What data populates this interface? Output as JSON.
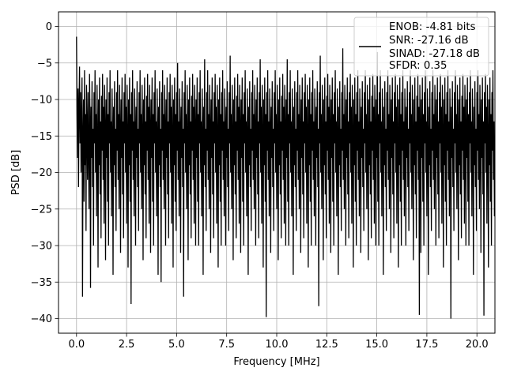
{
  "chart_data": {
    "type": "line",
    "title": "",
    "xlabel": "Frequency [MHz]",
    "ylabel": "PSD [dB]",
    "xlim": [
      -0.9,
      20.9
    ],
    "ylim": [
      -42,
      2
    ],
    "xticks": [
      0.0,
      2.5,
      5.0,
      7.5,
      10.0,
      12.5,
      15.0,
      17.5,
      20.0
    ],
    "xtick_labels": [
      "0.0",
      "2.5",
      "5.0",
      "7.5",
      "10.0",
      "12.5",
      "15.0",
      "17.5",
      "20.0"
    ],
    "yticks": [
      0,
      -5,
      -10,
      -15,
      -20,
      -25,
      -30,
      -35,
      -40
    ],
    "ytick_labels": [
      "0",
      "−5",
      "−10",
      "−15",
      "−20",
      "−25",
      "−30",
      "−35",
      "−40"
    ],
    "grid": true,
    "legend_position": "top-right",
    "legend_lines": [
      "ENOB: -4.81 bits",
      "SNR: -27.16 dB",
      "SINAD: -27.18 dB",
      "SFDR: 0.35"
    ],
    "series_color": "#000000",
    "peaks": [
      {
        "x": 0.0,
        "y": -1.4
      },
      {
        "x": 0.36,
        "y": -37.0
      },
      {
        "x": 0.85,
        "y": -35.8
      },
      {
        "x": 3.12,
        "y": -38.0
      },
      {
        "x": 4.5,
        "y": -35.0
      },
      {
        "x": 5.65,
        "y": -37.0
      },
      {
        "x": 9.1,
        "y": -39.8
      },
      {
        "x": 11.5,
        "y": -38.3
      },
      {
        "x": 16.6,
        "y": -39.5
      },
      {
        "x": 18.2,
        "y": -40.0
      },
      {
        "x": 19.4,
        "y": -39.6
      }
    ],
    "series": [
      {
        "sampling": "every 0.025 MHz from 0.0 to 20.0 MHz (801 points)",
        "x_start": 0.0,
        "x_step": 0.025,
        "values": [
          -1.4,
          -12,
          -18,
          -8.5,
          -22,
          -11,
          -5.5,
          -16,
          -9,
          -20,
          -13,
          -7,
          -37,
          -15,
          -10,
          -24,
          -6,
          -19,
          -12,
          -28,
          -8,
          -14,
          -21,
          -9,
          -17,
          -25,
          -6.5,
          -13,
          -35.8,
          -11,
          -18,
          -7.5,
          -22,
          -14,
          -30,
          -9,
          -16,
          -6,
          -20,
          -12,
          -26,
          -8,
          -15,
          -33,
          -10,
          -19,
          -7,
          -23,
          -13,
          -29,
          -9.5,
          -17,
          -6.5,
          -21,
          -11,
          -27,
          -8,
          -14,
          -32,
          -10,
          -18,
          -7,
          -24,
          -12,
          -30,
          -9,
          -16,
          -6,
          -20,
          -13,
          -26,
          -8.5,
          -15,
          -34,
          -11,
          -19,
          -7.5,
          -22,
          -14,
          -28,
          -9,
          -17,
          -6,
          -21,
          -12,
          -25,
          -8,
          -14,
          -31,
          -10,
          -18,
          -7,
          -23,
          -13,
          -29,
          -9,
          -16,
          -6.5,
          -20,
          -11,
          -27,
          -8,
          -15,
          -33,
          -10,
          -19,
          -7,
          -24,
          -12,
          -38,
          -9,
          -17,
          -6,
          -21,
          -13,
          -26,
          -8.5,
          -14,
          -30,
          -11,
          -18,
          -7.5,
          -22,
          -14,
          -28,
          -9,
          -16,
          -6,
          -20,
          -12,
          -25,
          -8,
          -15,
          -32,
          -10,
          -19,
          -7,
          -23,
          -13,
          -29,
          -9.5,
          -17,
          -6.5,
          -21,
          -11,
          -27,
          -8,
          -14,
          -31,
          -10,
          -18,
          -7,
          -24,
          -12,
          -30,
          -9,
          -16,
          -6,
          -20,
          -13,
          -26,
          -8.5,
          -15,
          -34,
          -11,
          -19,
          -7.5,
          -22,
          -14,
          -35,
          -9,
          -17,
          -6,
          -21,
          -12,
          -25,
          -8,
          -14,
          -30,
          -10,
          -18,
          -7,
          -23,
          -13,
          -29,
          -9,
          -16,
          -6.5,
          -20,
          -11,
          -27,
          -8,
          -15,
          -33,
          -10,
          -19,
          -7,
          -24,
          -12,
          -28,
          -9,
          -17,
          -5,
          -21,
          -13,
          -26,
          -8.5,
          -14,
          -31,
          -11,
          -18,
          -7.5,
          -22,
          -14,
          -37,
          -9,
          -16,
          -6,
          -20,
          -12,
          -25,
          -8,
          -15,
          -32,
          -10,
          -19,
          -7,
          -23,
          -13,
          -29,
          -9.5,
          -17,
          -6.5,
          -21,
          -11,
          -27,
          -8,
          -14,
          -30,
          -10,
          -18,
          -7,
          -24,
          -12,
          -30,
          -9,
          -16,
          -6,
          -20,
          -13,
          -26,
          -8.5,
          -15,
          -34,
          -11,
          -19,
          -4.5,
          -22,
          -14,
          -28,
          -9,
          -17,
          -6,
          -21,
          -12,
          -25,
          -8,
          -14,
          -31,
          -10,
          -18,
          -7,
          -23,
          -13,
          -29,
          -9,
          -16,
          -6.5,
          -20,
          -11,
          -27,
          -8,
          -15,
          -33,
          -10,
          -19,
          -7,
          -24,
          -12,
          -30,
          -9,
          -17,
          -6,
          -21,
          -13,
          -26,
          -8.5,
          -14,
          -30,
          -11,
          -18,
          -7.5,
          -22,
          -14,
          -28,
          -9,
          -16,
          -4,
          -20,
          -12,
          -25,
          -8,
          -15,
          -32,
          -10,
          -19,
          -7,
          -23,
          -13,
          -29,
          -9.5,
          -17,
          -6.5,
          -21,
          -11,
          -27,
          -8,
          -14,
          -31,
          -10,
          -18,
          -7,
          -24,
          -12,
          -30,
          -9,
          -16,
          -6,
          -20,
          -13,
          -26,
          -8.5,
          -15,
          -34,
          -11,
          -19,
          -7.5,
          -22,
          -14,
          -28,
          -9,
          -17,
          -6,
          -21,
          -12,
          -25,
          -8,
          -14,
          -30,
          -10,
          -18,
          -7,
          -23,
          -13,
          -29,
          -9,
          -16,
          -4.5,
          -20,
          -11,
          -27,
          -8,
          -15,
          -33,
          -10,
          -19,
          -7,
          -24,
          -12,
          -39.8,
          -9,
          -17,
          -6,
          -21,
          -13,
          -26,
          -8.5,
          -14,
          -31,
          -11,
          -18,
          -7.5,
          -22,
          -14,
          -28,
          -9,
          -16,
          -6,
          -20,
          -12,
          -25,
          -8,
          -15,
          -32,
          -10,
          -19,
          -7,
          -23,
          -13,
          -29,
          -9.5,
          -17,
          -6.5,
          -21,
          -11,
          -27,
          -8,
          -14,
          -30,
          -10,
          -18,
          -4.5,
          -24,
          -12,
          -30,
          -9,
          -16,
          -6,
          -20,
          -13,
          -26,
          -8.5,
          -15,
          -34,
          -11,
          -19,
          -7.5,
          -22,
          -14,
          -28,
          -9,
          -17,
          -6,
          -21,
          -12,
          -25,
          -8,
          -14,
          -31,
          -10,
          -18,
          -7,
          -23,
          -13,
          -29,
          -9,
          -16,
          -6.5,
          -20,
          -11,
          -27,
          -8,
          -15,
          -33,
          -10,
          -19,
          -7,
          -24,
          -12,
          -30,
          -9,
          -17,
          -6,
          -21,
          -13,
          -26,
          -8.5,
          -14,
          -30,
          -11,
          -18,
          -7.5,
          -22,
          -14,
          -38.3,
          -9,
          -16,
          -4,
          -20,
          -12,
          -25,
          -8,
          -15,
          -32,
          -10,
          -19,
          -7,
          -23,
          -13,
          -29,
          -9.5,
          -17,
          -6.5,
          -21,
          -11,
          -27,
          -8,
          -14,
          -31,
          -10,
          -18,
          -7,
          -24,
          -12,
          -30,
          -9,
          -16,
          -6,
          -20,
          -13,
          -26,
          -8.5,
          -15,
          -34,
          -11,
          -19,
          -7.5,
          -22,
          -14,
          -28,
          -9,
          -17,
          -3,
          -21,
          -12,
          -25,
          -8,
          -14,
          -30,
          -10,
          -18,
          -7,
          -23,
          -13,
          -29,
          -9,
          -16,
          -6.5,
          -20,
          -11,
          -27,
          -8,
          -15,
          -33,
          -10,
          -19,
          -7,
          -24,
          -12,
          -30,
          -9,
          -17,
          -6,
          -21,
          -13,
          -26,
          -8.5,
          -14,
          -31,
          -11,
          -18,
          -7.5,
          -22,
          -14,
          -28,
          -9,
          -16,
          -6,
          -20,
          -12,
          -25,
          -8,
          -15,
          -32,
          -10,
          -19,
          -7,
          -23,
          -13,
          -29,
          -9.5,
          -17,
          -6.5,
          -21,
          -11,
          -27,
          -8,
          -14,
          -30,
          -10,
          -18,
          -3.5,
          -24,
          -12,
          -30,
          -9,
          -16,
          -6,
          -20,
          -13,
          -26,
          -8.5,
          -15,
          -34,
          -11,
          -19,
          -7.5,
          -22,
          -14,
          -28,
          -9,
          -17,
          -6,
          -21,
          -12,
          -25,
          -8,
          -14,
          -31,
          -10,
          -18,
          -7,
          -23,
          -13,
          -29,
          -9,
          -16,
          -6.5,
          -20,
          -11,
          -27,
          -8,
          -15,
          -33,
          -10,
          -19,
          -7,
          -24,
          -12,
          -30,
          -9,
          -17,
          -6,
          -21,
          -13,
          -26,
          -8.5,
          -14,
          -30,
          -11,
          -18,
          -7.5,
          -22,
          -14,
          -28,
          -9,
          -16,
          -6,
          -20,
          -12,
          -25,
          -8,
          -15,
          -32,
          -10,
          -19,
          -7,
          -23,
          -13,
          -29,
          -9.5,
          -17,
          -6.5,
          -21,
          -11,
          -39.5,
          -8,
          -14,
          -31,
          -10,
          -18,
          -7,
          -24,
          -12,
          -30,
          -9,
          -16,
          -6,
          -20,
          -13,
          -26,
          -8.5,
          -15,
          -34,
          -11,
          -19,
          -7.5,
          -22,
          -14,
          -28,
          -9,
          -17,
          -6,
          -21,
          -12,
          -25,
          -8,
          -14,
          -30,
          -10,
          -18,
          -7,
          -23,
          -13,
          -29,
          -9,
          -16,
          -6.5,
          -20,
          -11,
          -27,
          -8,
          -15,
          -33,
          -10,
          -19,
          -7,
          -24,
          -12,
          -30,
          -9,
          -17,
          -6,
          -21,
          -13,
          -26,
          -8.5,
          -14,
          -40.0,
          -11,
          -18,
          -7.5,
          -22,
          -14,
          -28,
          -9,
          -16,
          -6,
          -20,
          -12,
          -25,
          -8,
          -15,
          -32,
          -10,
          -19,
          -7,
          -23,
          -13,
          -29,
          -9.5,
          -17,
          -6.5,
          -21,
          -11,
          -27,
          -8,
          -14,
          -30,
          -10,
          -18,
          -7,
          -24,
          -12,
          -30,
          -9,
          -16,
          -6,
          -20,
          -13,
          -26,
          -8.5,
          -15,
          -34,
          -11,
          -19,
          -7.5,
          -22,
          -14,
          -28,
          -9,
          -17,
          -6,
          -21,
          -12,
          -25,
          -8,
          -14,
          -31,
          -10,
          -18,
          -7,
          -23,
          -13,
          -39.6,
          -9,
          -16,
          -6.5,
          -20,
          -11,
          -27,
          -8,
          -15,
          -33,
          -10,
          -19,
          -7,
          -24,
          -12,
          -30,
          -9,
          -17,
          -6,
          -21,
          -13,
          -26,
          -8.5,
          -14,
          -30,
          -11,
          -18,
          -7.5,
          -22,
          -14,
          -28,
          -9,
          -16,
          -6,
          -20,
          -12,
          -25,
          -8,
          -15,
          -32,
          -10
        ]
      }
    ]
  }
}
